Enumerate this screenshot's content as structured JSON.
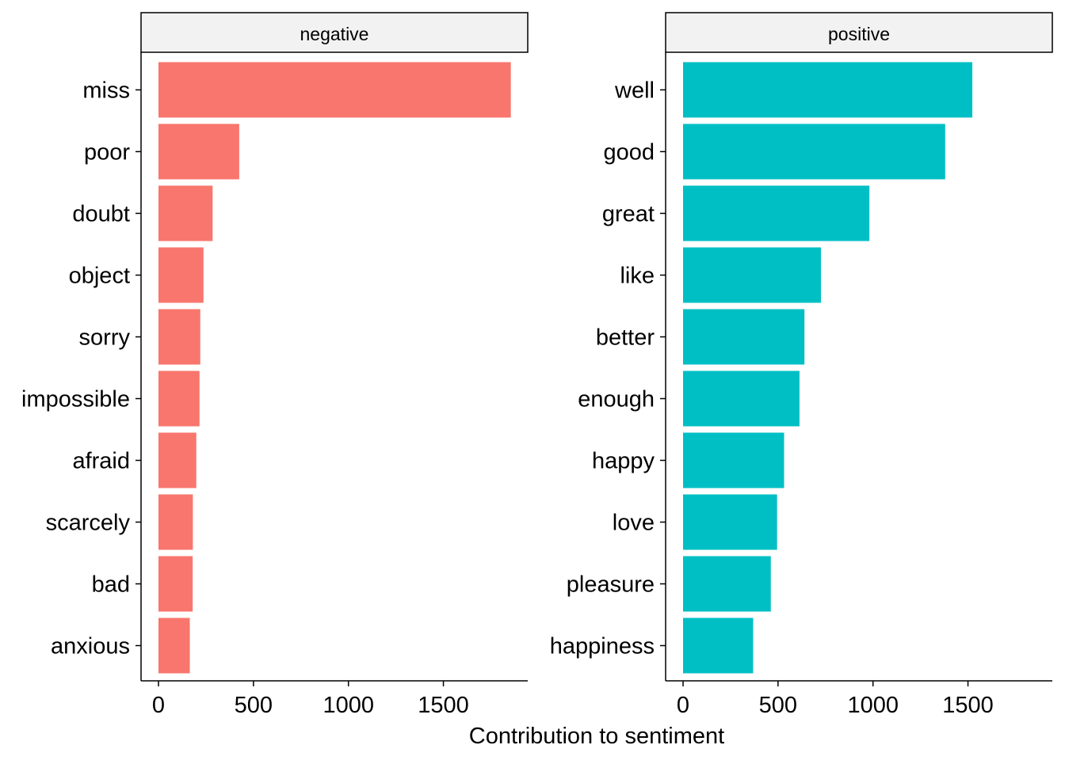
{
  "chart_data": {
    "type": "bar",
    "orientation": "horizontal",
    "xlabel": "Contribution to sentiment",
    "xlim": [
      0,
      1930
    ],
    "xticks": [
      0,
      500,
      1000,
      1500
    ],
    "grid": false,
    "legend": "none",
    "panels": [
      {
        "name": "negative",
        "color": "#F8766D",
        "categories": [
          "miss",
          "poor",
          "doubt",
          "object",
          "sorry",
          "impossible",
          "afraid",
          "scarcely",
          "bad",
          "anxious"
        ],
        "values": [
          1855,
          425,
          285,
          237,
          220,
          216,
          199,
          181,
          180,
          165
        ]
      },
      {
        "name": "positive",
        "color": "#00BFC4",
        "categories": [
          "well",
          "good",
          "great",
          "like",
          "better",
          "enough",
          "happy",
          "love",
          "pleasure",
          "happiness"
        ],
        "values": [
          1523,
          1380,
          981,
          726,
          639,
          613,
          532,
          495,
          462,
          369
        ]
      }
    ]
  }
}
